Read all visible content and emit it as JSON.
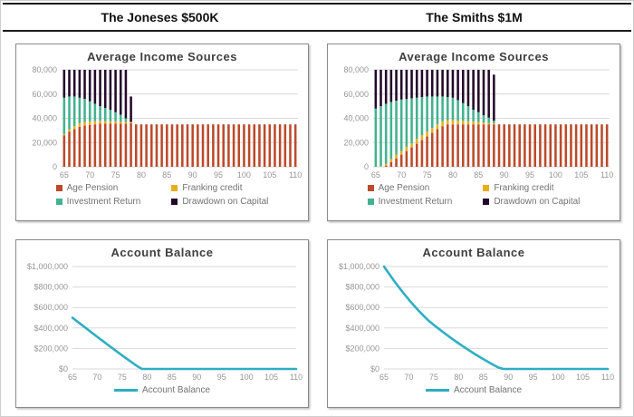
{
  "header": {
    "left_title": "The Joneses $500K",
    "right_title": "The Smiths $1M"
  },
  "colors": {
    "age_pension": "#BC4A2B",
    "franking_credit": "#E9AD1B",
    "investment_return": "#43B28E",
    "drawdown": "#23092B",
    "balance_line": "#2FAEC2",
    "grid": "#D9D9D9",
    "axis_text": "#969696",
    "title_text": "#3F3F3F",
    "panel_border": "#8A8A8A"
  },
  "chart_data": [
    {
      "id": "joneses-income",
      "type": "bar",
      "stacked": true,
      "title": "Average Income Sources",
      "x_start": 65,
      "x_end": 110,
      "x_ticks": [
        65,
        70,
        75,
        80,
        85,
        90,
        95,
        100,
        105,
        110
      ],
      "ylim": [
        0,
        80000
      ],
      "y_ticks": [
        {
          "v": 0,
          "label": "0"
        },
        {
          "v": 20000,
          "label": "20,000"
        },
        {
          "v": 40000,
          "label": "40,000"
        },
        {
          "v": 60000,
          "label": "60,000"
        },
        {
          "v": 80000,
          "label": "80,000"
        }
      ],
      "legend_position": "bottom",
      "series": [
        {
          "name": "Age Pension",
          "color_key": "age_pension",
          "values": [
            26000,
            29000,
            31000,
            33000,
            34000,
            34500,
            35000,
            35500,
            35500,
            35500,
            35500,
            35500,
            35500,
            36000,
            35000,
            35000,
            35000,
            35000,
            35000,
            35000,
            35000,
            35000,
            35000,
            35000,
            35000,
            35000,
            35000,
            35000,
            35000,
            35000,
            35000,
            35000,
            35000,
            35000,
            35000,
            35000,
            35000,
            35000,
            35000,
            35000,
            35000,
            35000,
            35000,
            35000,
            35000,
            35000
          ]
        },
        {
          "name": "Franking credit",
          "color_key": "franking_credit",
          "values": [
            1000,
            2000,
            2500,
            3000,
            3000,
            3000,
            2500,
            2500,
            2000,
            2000,
            2000,
            1500,
            1500,
            1000,
            0,
            0,
            0,
            0,
            0,
            0,
            0,
            0,
            0,
            0,
            0,
            0,
            0,
            0,
            0,
            0,
            0,
            0,
            0,
            0,
            0,
            0,
            0,
            0,
            0,
            0,
            0,
            0,
            0,
            0,
            0,
            0
          ]
        },
        {
          "name": "Investment Return",
          "color_key": "investment_return",
          "values": [
            30000,
            27000,
            24500,
            21000,
            19000,
            16500,
            14500,
            12000,
            11000,
            9500,
            7500,
            6000,
            3000,
            0,
            0,
            0,
            0,
            0,
            0,
            0,
            0,
            0,
            0,
            0,
            0,
            0,
            0,
            0,
            0,
            0,
            0,
            0,
            0,
            0,
            0,
            0,
            0,
            0,
            0,
            0,
            0,
            0,
            0,
            0,
            0,
            0
          ]
        },
        {
          "name": "Drawdown on Capital",
          "color_key": "drawdown",
          "values": [
            23000,
            22000,
            22000,
            23000,
            24000,
            26000,
            28000,
            30000,
            31500,
            33000,
            35000,
            37000,
            40000,
            21000,
            0,
            0,
            0,
            0,
            0,
            0,
            0,
            0,
            0,
            0,
            0,
            0,
            0,
            0,
            0,
            0,
            0,
            0,
            0,
            0,
            0,
            0,
            0,
            0,
            0,
            0,
            0,
            0,
            0,
            0,
            0,
            0
          ]
        }
      ]
    },
    {
      "id": "smiths-income",
      "type": "bar",
      "stacked": true,
      "title": "Average Income Sources",
      "x_start": 65,
      "x_end": 110,
      "x_ticks": [
        65,
        70,
        75,
        80,
        85,
        90,
        95,
        100,
        105,
        110
      ],
      "ylim": [
        0,
        80000
      ],
      "y_ticks": [
        {
          "v": 0,
          "label": "0"
        },
        {
          "v": 20000,
          "label": "20,000"
        },
        {
          "v": 40000,
          "label": "40,000"
        },
        {
          "v": 60000,
          "label": "60,000"
        },
        {
          "v": 80000,
          "label": "80,000"
        }
      ],
      "legend_position": "bottom",
      "series": [
        {
          "name": "Age Pension",
          "color_key": "age_pension",
          "values": [
            0,
            0,
            1000,
            4000,
            7000,
            10000,
            13000,
            16000,
            19000,
            22000,
            25000,
            28000,
            31000,
            33500,
            35000,
            35000,
            35000,
            35000,
            35000,
            35000,
            35000,
            35000,
            35000,
            35000,
            35000,
            35000,
            35000,
            35000,
            35000,
            35000,
            35000,
            35000,
            35000,
            35000,
            35000,
            35000,
            35000,
            35000,
            35000,
            35000,
            35000,
            35000,
            35000,
            35000,
            35000,
            35000
          ]
        },
        {
          "name": "Franking credit",
          "color_key": "franking_credit",
          "values": [
            0,
            500,
            1500,
            2500,
            3000,
            3000,
            3500,
            3500,
            4000,
            4000,
            4000,
            4000,
            4000,
            4000,
            3500,
            3500,
            3000,
            3000,
            2500,
            2500,
            2000,
            1500,
            1000,
            1000,
            0,
            0,
            0,
            0,
            0,
            0,
            0,
            0,
            0,
            0,
            0,
            0,
            0,
            0,
            0,
            0,
            0,
            0,
            0,
            0,
            0,
            0
          ]
        },
        {
          "name": "Investment Return",
          "color_key": "investment_return",
          "values": [
            48000,
            49500,
            49500,
            47000,
            44500,
            42500,
            39500,
            37000,
            34000,
            31500,
            29000,
            26000,
            23000,
            20500,
            19000,
            18500,
            17000,
            14500,
            12500,
            9500,
            8000,
            6000,
            4500,
            2000,
            0,
            0,
            0,
            0,
            0,
            0,
            0,
            0,
            0,
            0,
            0,
            0,
            0,
            0,
            0,
            0,
            0,
            0,
            0,
            0,
            0,
            0
          ]
        },
        {
          "name": "Drawdown on Capital",
          "color_key": "drawdown",
          "values": [
            32000,
            30000,
            28000,
            26500,
            25500,
            24500,
            24000,
            23500,
            23000,
            22500,
            22000,
            22000,
            22000,
            22000,
            22500,
            23000,
            25000,
            27500,
            30000,
            33000,
            35000,
            37500,
            39500,
            38000,
            0,
            0,
            0,
            0,
            0,
            0,
            0,
            0,
            0,
            0,
            0,
            0,
            0,
            0,
            0,
            0,
            0,
            0,
            0,
            0,
            0,
            0
          ]
        }
      ]
    },
    {
      "id": "joneses-balance",
      "type": "line",
      "title": "Account Balance",
      "legend_label": "Account Balance",
      "x_start": 65,
      "x_end": 110,
      "x_ticks": [
        65,
        70,
        75,
        80,
        85,
        90,
        95,
        100,
        105,
        110
      ],
      "ylim": [
        0,
        1000000
      ],
      "y_ticks": [
        {
          "v": 0,
          "label": "$0"
        },
        {
          "v": 200000,
          "label": "$200,000"
        },
        {
          "v": 400000,
          "label": "$400,000"
        },
        {
          "v": 600000,
          "label": "$600,000"
        },
        {
          "v": 800000,
          "label": "$800,000"
        },
        {
          "v": 1000000,
          "label": "$1,000,000"
        }
      ],
      "legend_position": "bottom",
      "values": [
        500000,
        462000,
        425000,
        388000,
        350000,
        313000,
        277000,
        240000,
        204000,
        168000,
        132000,
        97000,
        62000,
        28000,
        0,
        0,
        0,
        0,
        0,
        0,
        0,
        0,
        0,
        0,
        0,
        0,
        0,
        0,
        0,
        0,
        0,
        0,
        0,
        0,
        0,
        0,
        0,
        0,
        0,
        0,
        0,
        0,
        0,
        0,
        0,
        0
      ]
    },
    {
      "id": "smiths-balance",
      "type": "line",
      "title": "Account Balance",
      "legend_label": "Account Balance",
      "x_start": 65,
      "x_end": 110,
      "x_ticks": [
        65,
        70,
        75,
        80,
        85,
        90,
        95,
        100,
        105,
        110
      ],
      "ylim": [
        0,
        1000000
      ],
      "y_ticks": [
        {
          "v": 0,
          "label": "$0"
        },
        {
          "v": 200000,
          "label": "$200,000"
        },
        {
          "v": 400000,
          "label": "$400,000"
        },
        {
          "v": 600000,
          "label": "$600,000"
        },
        {
          "v": 800000,
          "label": "$800,000"
        },
        {
          "v": 1000000,
          "label": "$1,000,000"
        }
      ],
      "legend_position": "bottom",
      "values": [
        1000000,
        930000,
        862000,
        797000,
        735000,
        676000,
        620000,
        567000,
        517000,
        470000,
        430000,
        392000,
        355000,
        319000,
        284000,
        250000,
        217000,
        185000,
        154000,
        124000,
        95000,
        67000,
        40000,
        14000,
        0,
        0,
        0,
        0,
        0,
        0,
        0,
        0,
        0,
        0,
        0,
        0,
        0,
        0,
        0,
        0,
        0,
        0,
        0,
        0,
        0,
        0
      ]
    }
  ]
}
